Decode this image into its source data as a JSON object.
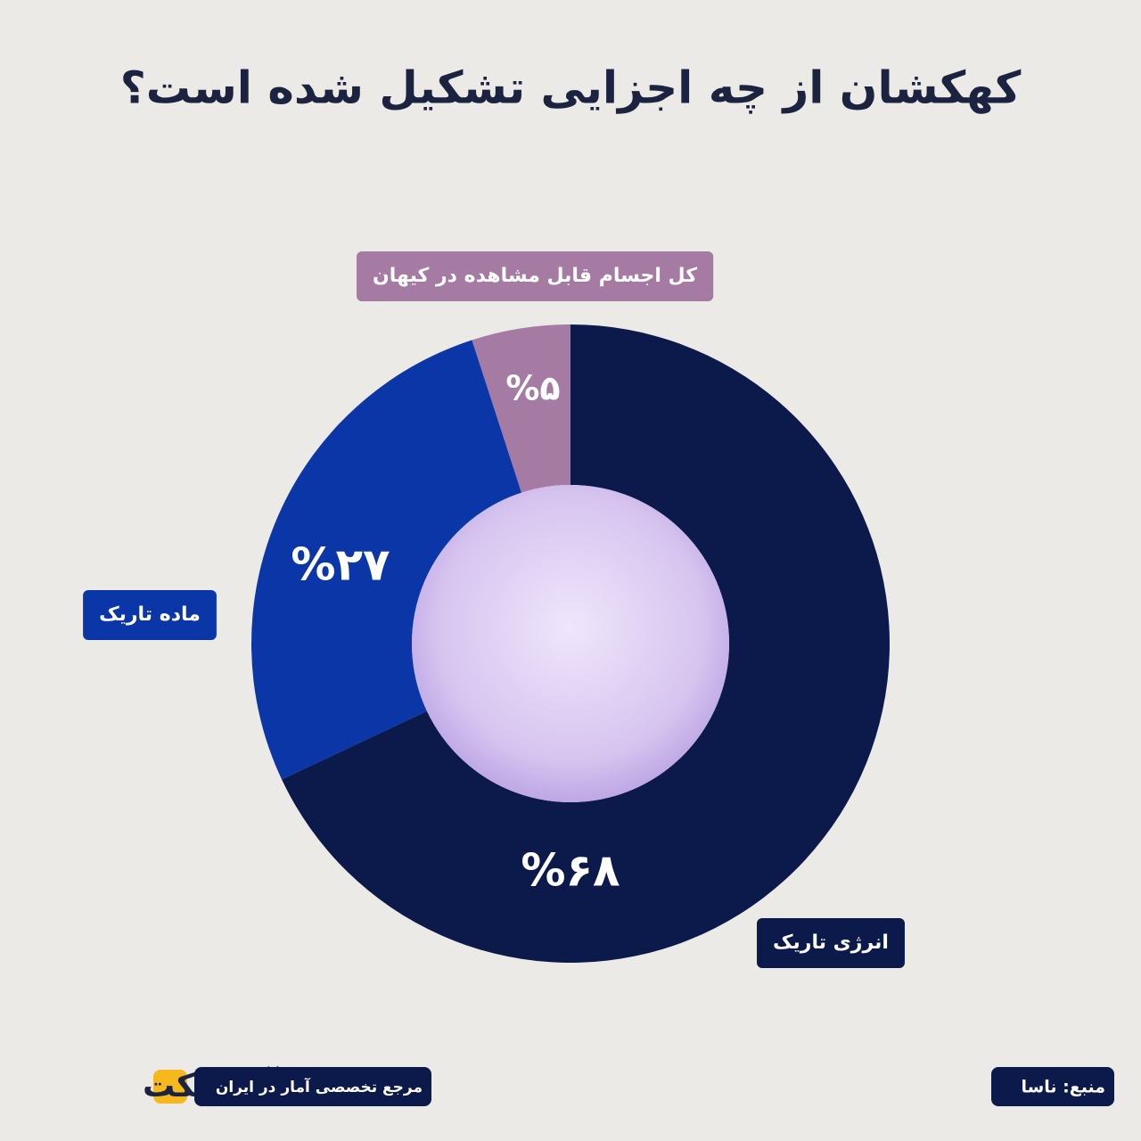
{
  "chart_data": {
    "type": "pie",
    "donut": true,
    "title": "کهکشان از چه اجزایی تشکیل شده است؟",
    "categories": [
      "کل اجسام قابل مشاهده در کیهان",
      "ماده تاریک",
      "انرژی تاریک"
    ],
    "values": [
      5,
      27,
      68
    ],
    "value_labels": [
      "%۵",
      "%۲۷",
      "%۶۸"
    ],
    "colors": [
      "#a67ba3",
      "#0a36a8",
      "#0c1a4b"
    ]
  },
  "footer": {
    "brand": "آمارفکت",
    "tagline": "مرجع تخصصی آمار در ایران",
    "source": "منبع: ناسا"
  }
}
